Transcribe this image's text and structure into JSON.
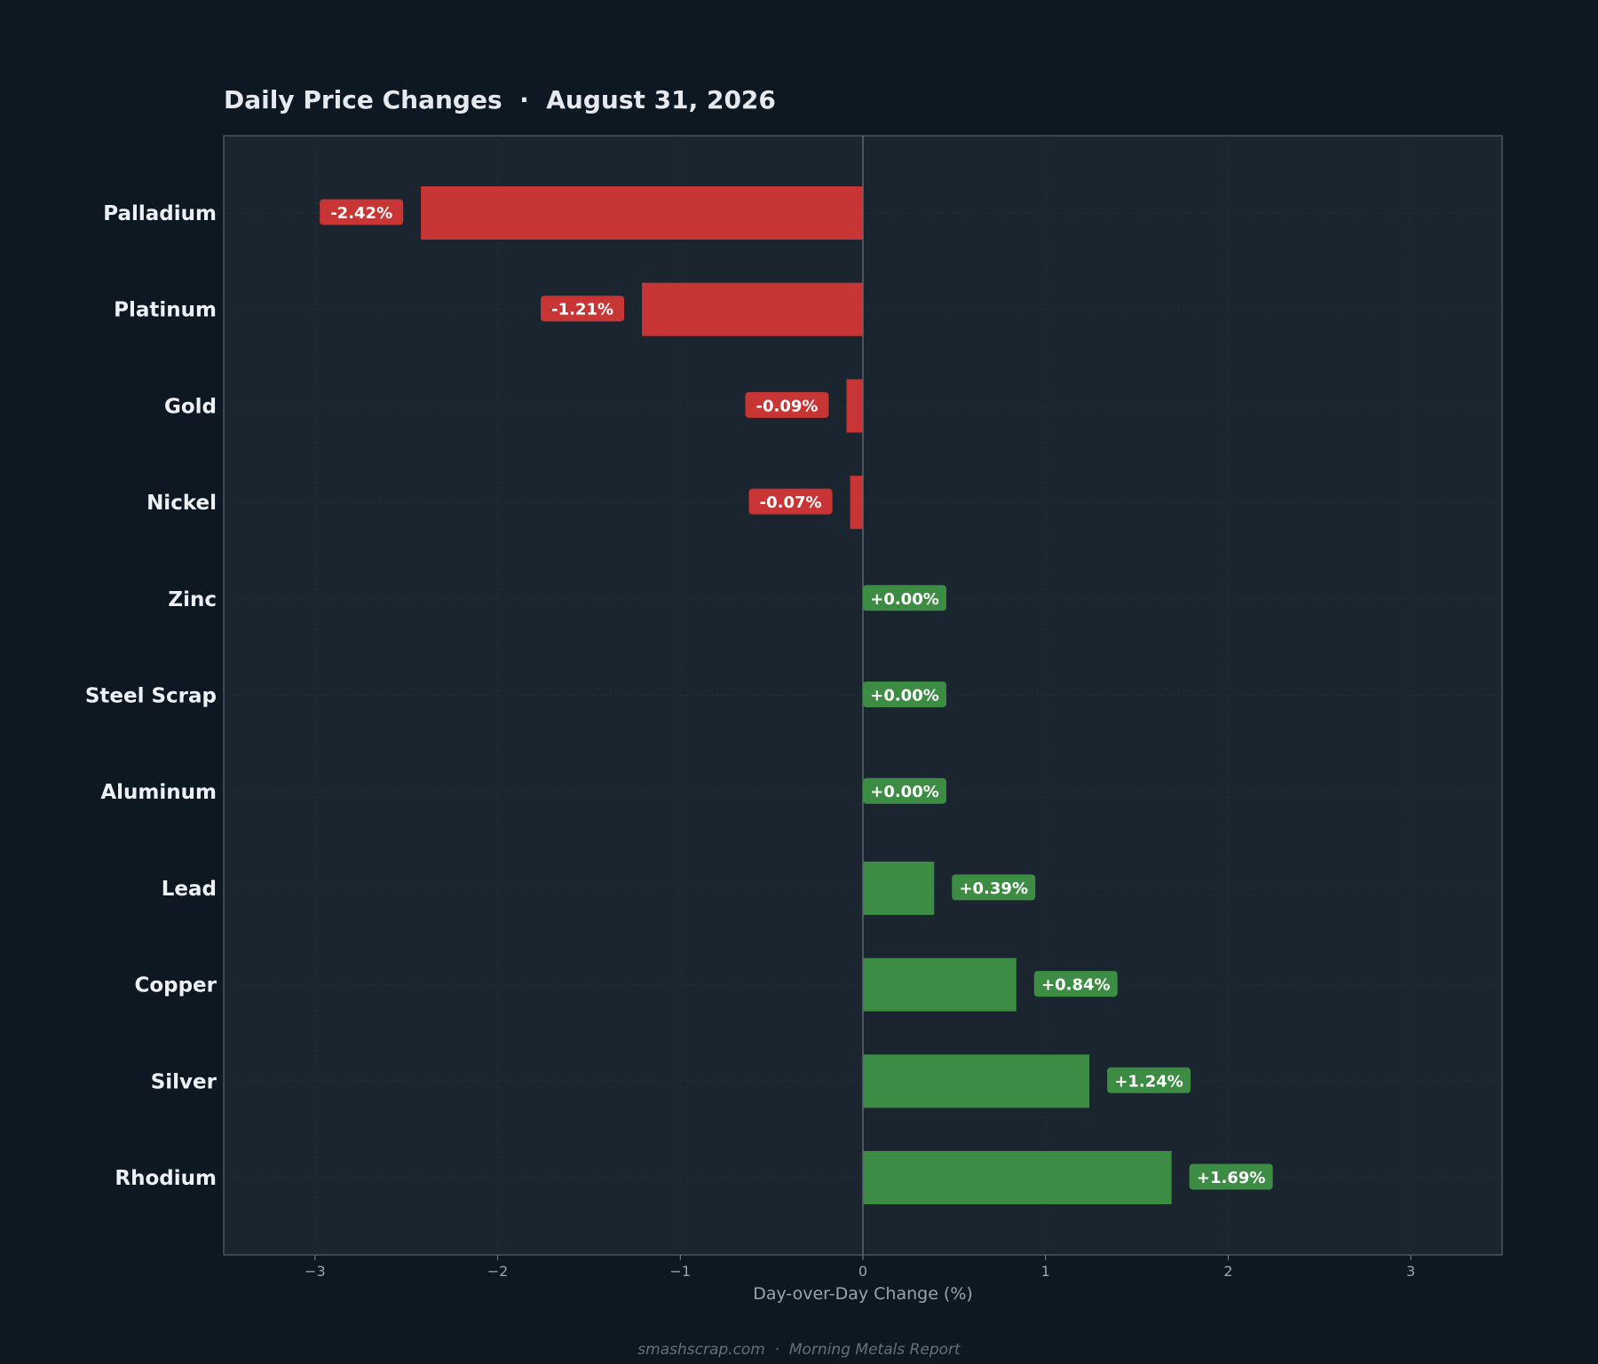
{
  "chart_data": {
    "type": "bar",
    "orientation": "horizontal",
    "title": "Daily Price Changes  ·  August 31, 2026",
    "xlabel": "Day-over-Day Change (%)",
    "ylabel": "",
    "xlim": [
      -3.5,
      3.5
    ],
    "xticks": [
      -3,
      -2,
      -1,
      0,
      1,
      2,
      3
    ],
    "xtick_labels": [
      "−3",
      "−2",
      "−1",
      "0",
      "1",
      "2",
      "3"
    ],
    "grid": true,
    "categories": [
      "Palladium",
      "Platinum",
      "Gold",
      "Nickel",
      "Zinc",
      "Steel Scrap",
      "Aluminum",
      "Lead",
      "Copper",
      "Silver",
      "Rhodium"
    ],
    "values": [
      -2.42,
      -1.21,
      -0.09,
      -0.07,
      0.0,
      0.0,
      0.0,
      0.39,
      0.84,
      1.24,
      1.69
    ],
    "value_labels": [
      "-2.42%",
      "-1.21%",
      "-0.09%",
      "-0.07%",
      "+0.00%",
      "+0.00%",
      "+0.00%",
      "+0.39%",
      "+0.84%",
      "+1.24%",
      "+1.69%"
    ],
    "colors": {
      "negative": "#c83535",
      "positive": "#3c8c44"
    }
  },
  "footer": "smashscrap.com  ·  Morning Metals Report"
}
